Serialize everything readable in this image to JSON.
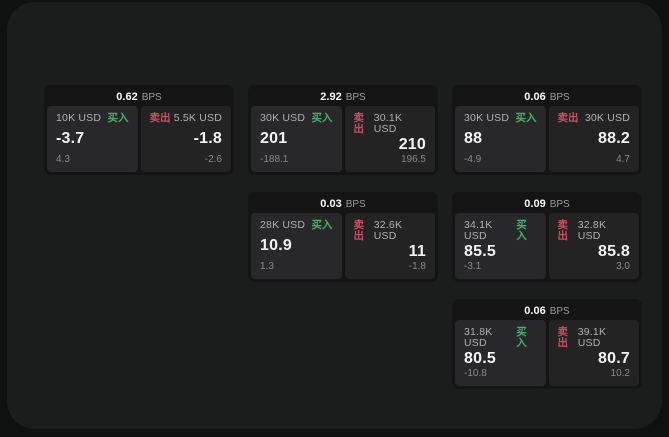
{
  "labels": {
    "buy": "买入",
    "sell": "卖出",
    "bps": "BPS"
  },
  "colors": {
    "buy_green": "#46b06c",
    "sell_red": "#cb5060",
    "surface": "#1b1c1c",
    "card_bg": "#141415"
  },
  "cards": [
    {
      "grid": {
        "col": 1,
        "row": 1
      },
      "bps": "0.62",
      "buy": {
        "amount": "10K USD",
        "value": "-3.7",
        "delta": "4.3"
      },
      "sell": {
        "amount": "5.5K USD",
        "value": "-1.8",
        "delta": "-2.6"
      }
    },
    {
      "grid": {
        "col": 2,
        "row": 1
      },
      "bps": "2.92",
      "buy": {
        "amount": "30K USD",
        "value": "201",
        "delta": "-188.1"
      },
      "sell": {
        "amount": "30.1K USD",
        "value": "210",
        "delta": "196.5"
      }
    },
    {
      "grid": {
        "col": 3,
        "row": 1
      },
      "bps": "0.06",
      "buy": {
        "amount": "30K USD",
        "value": "88",
        "delta": "-4.9"
      },
      "sell": {
        "amount": "30K USD",
        "value": "88.2",
        "delta": "4.7"
      }
    },
    {
      "grid": {
        "col": 2,
        "row": 2
      },
      "bps": "0.03",
      "buy": {
        "amount": "28K USD",
        "value": "10.9",
        "delta": "1.3"
      },
      "sell": {
        "amount": "32.6K USD",
        "value": "11",
        "delta": "-1.8"
      }
    },
    {
      "grid": {
        "col": 3,
        "row": 2
      },
      "bps": "0.09",
      "buy": {
        "amount": "34.1K USD",
        "value": "85.5",
        "delta": "-3.1"
      },
      "sell": {
        "amount": "32.8K USD",
        "value": "85.8",
        "delta": "3.0"
      }
    },
    {
      "grid": {
        "col": 3,
        "row": 3
      },
      "bps": "0.06",
      "buy": {
        "amount": "31.8K USD",
        "value": "80.5",
        "delta": "-10.8"
      },
      "sell": {
        "amount": "39.1K USD",
        "value": "80.7",
        "delta": "10.2"
      }
    }
  ]
}
